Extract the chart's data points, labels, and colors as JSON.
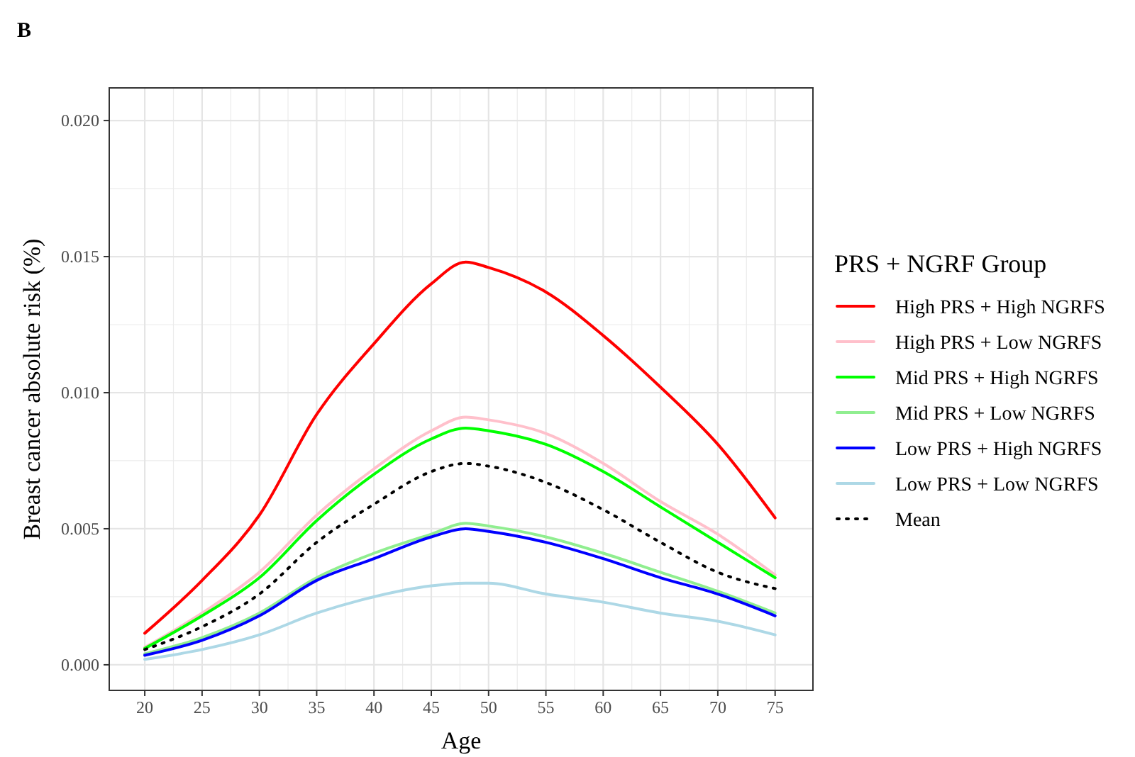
{
  "chart_data": {
    "type": "line",
    "title": "B",
    "xlabel": "Age",
    "ylabel": "Breast cancer absolute risk (%)",
    "legend_title": "PRS + NGRF Group",
    "legend": "right",
    "grid": true,
    "line_style": "solid",
    "x": [
      20,
      25,
      30,
      35,
      40,
      45,
      48,
      50,
      55,
      60,
      65,
      70,
      75
    ],
    "xlim": [
      16.9,
      78.3
    ],
    "xticks": [
      20,
      25,
      30,
      35,
      40,
      45,
      50,
      55,
      60,
      65,
      70,
      75
    ],
    "ylim": [
      -0.00094,
      0.0212
    ],
    "yticks": [
      {
        "value": 0,
        "label": "0.000"
      },
      {
        "value": 0.005,
        "label": "0.005"
      },
      {
        "value": 0.01,
        "label": "0.010"
      },
      {
        "value": 0.015,
        "label": "0.015"
      },
      {
        "value": 0.02,
        "label": "0.020"
      }
    ],
    "series": [
      {
        "name": "High PRS + High NGRFS",
        "color": "#ff0000",
        "values": [
          0.00116,
          0.0031,
          0.0055,
          0.0092,
          0.0118,
          0.014,
          0.0148,
          0.0146,
          0.0137,
          0.0121,
          0.0102,
          0.0081,
          0.0054
        ]
      },
      {
        "name": "High PRS + Low NGRFS",
        "color": "#ffc0cb",
        "values": [
          0.00064,
          0.0019,
          0.0034,
          0.0055,
          0.0072,
          0.0086,
          0.0091,
          0.009,
          0.0085,
          0.0074,
          0.006,
          0.0048,
          0.0033
        ]
      },
      {
        "name": "Mid PRS + High NGRFS",
        "color": "#00ff00",
        "values": [
          0.0006,
          0.0018,
          0.0032,
          0.0053,
          0.007,
          0.0083,
          0.0087,
          0.0086,
          0.0081,
          0.0071,
          0.0058,
          0.0045,
          0.0032
        ]
      },
      {
        "name": "Mid PRS + Low NGRFS",
        "color": "#90ee90",
        "values": [
          0.0004,
          0.001,
          0.0019,
          0.0032,
          0.0041,
          0.0048,
          0.0052,
          0.0051,
          0.0047,
          0.0041,
          0.0034,
          0.0027,
          0.0019
        ]
      },
      {
        "name": "Low PRS + High NGRFS",
        "color": "#0000ff",
        "values": [
          0.00035,
          0.0009,
          0.0018,
          0.0031,
          0.0039,
          0.0047,
          0.005,
          0.0049,
          0.0045,
          0.0039,
          0.0032,
          0.0026,
          0.0018
        ]
      },
      {
        "name": "Low PRS + Low NGRFS",
        "color": "#add8e6",
        "values": [
          0.0002,
          0.00056,
          0.0011,
          0.0019,
          0.0025,
          0.0029,
          0.003,
          0.003,
          0.0026,
          0.0023,
          0.0019,
          0.0016,
          0.0011
        ]
      },
      {
        "name": "Mean",
        "color": "#000000",
        "line_style": "dotted",
        "values": [
          0.00056,
          0.0014,
          0.0026,
          0.0045,
          0.0059,
          0.0071,
          0.0074,
          0.0073,
          0.0067,
          0.0057,
          0.0045,
          0.0034,
          0.0028
        ]
      }
    ]
  }
}
